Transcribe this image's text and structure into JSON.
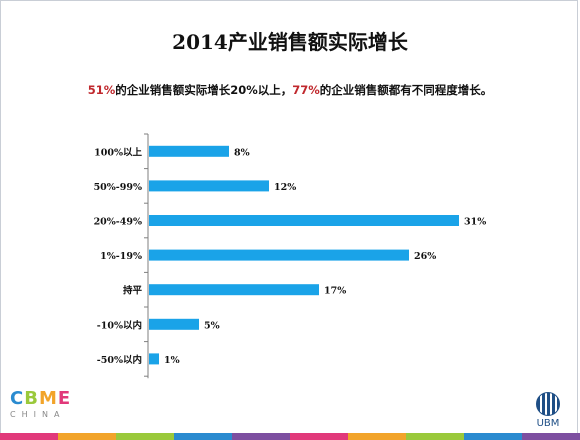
{
  "title": "2014产业销售额实际增长",
  "subtitle": {
    "part1": "51%",
    "part2": "的企业销售额实际增长20%以上，",
    "part3": "77%",
    "part4": "的企业销售额都有不同程度增长。"
  },
  "colors": {
    "bar": "#1aa3e8",
    "highlight": "#c0282d",
    "axis": "#7f7f7f"
  },
  "chart_data": {
    "type": "bar",
    "orientation": "horizontal",
    "categories": [
      "100%以上",
      "50%-99%",
      "20%-49%",
      "1%-19%",
      "持平",
      "-10%以内",
      "-50%以内"
    ],
    "values": [
      8,
      12,
      31,
      26,
      17,
      5,
      1
    ],
    "data_labels": [
      "8%",
      "12%",
      "31%",
      "26%",
      "17%",
      "5%",
      "1%"
    ],
    "xlim": [
      0,
      31
    ],
    "grid": false
  },
  "footer": {
    "logo_text": "CBME",
    "logo_sub": "CHINA",
    "ubm_text": "UBM",
    "stripe_colors": [
      "#e1397a",
      "#f2a42a",
      "#9ac93b",
      "#2a8bd0",
      "#7d4fa0",
      "#e1397a",
      "#f2a42a",
      "#9ac93b",
      "#2a8bd0",
      "#7d4fa0"
    ]
  }
}
